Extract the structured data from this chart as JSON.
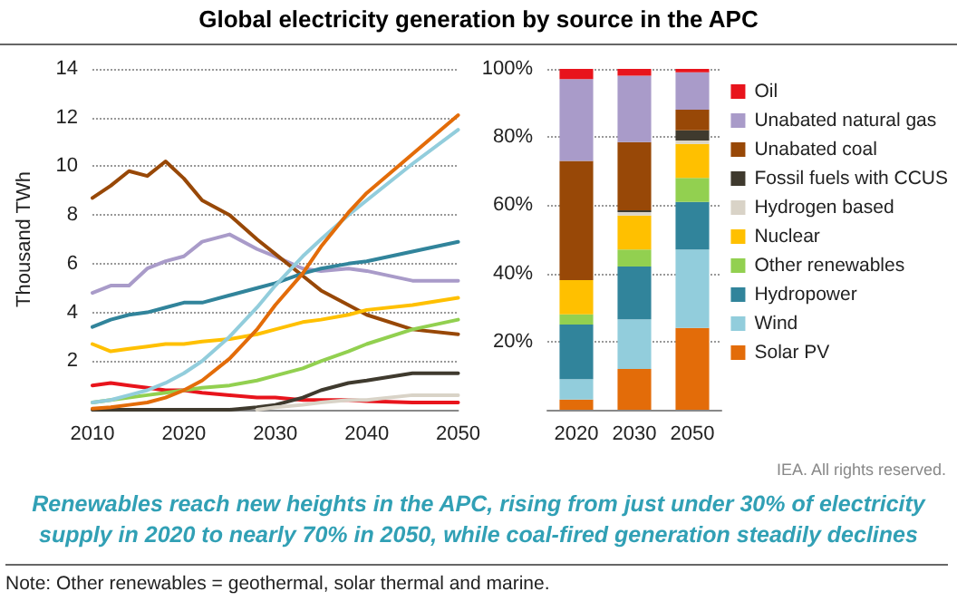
{
  "chart_data": [
    {
      "type": "line",
      "title": "Global electricity generation by source in the APC",
      "ylabel": "Thousand TWh",
      "x": [
        2010,
        2012,
        2014,
        2016,
        2018,
        2020,
        2022,
        2025,
        2028,
        2030,
        2033,
        2035,
        2038,
        2040,
        2045,
        2050
      ],
      "xlim": [
        2010,
        2050
      ],
      "xticks": [
        2010,
        2020,
        2030,
        2040,
        2050
      ],
      "ylim": [
        0,
        14
      ],
      "yticks": [
        2,
        4,
        6,
        8,
        10,
        12,
        14
      ],
      "grid": "y",
      "legend": false,
      "marker": "none",
      "line_style": "solid",
      "series": [
        {
          "color": "#e8141c",
          "values": [
            1.0,
            1.1,
            1.0,
            0.9,
            0.8,
            0.8,
            0.7,
            0.6,
            0.5,
            0.5,
            0.4,
            0.4,
            0.4,
            0.35,
            0.3,
            0.3
          ]
        },
        {
          "color": "#a99bc9",
          "values": [
            4.8,
            5.1,
            5.1,
            5.8,
            6.1,
            6.3,
            6.9,
            7.2,
            6.6,
            6.3,
            5.8,
            5.7,
            5.8,
            5.7,
            5.3,
            5.3
          ]
        },
        {
          "color": "#984807",
          "values": [
            8.7,
            9.2,
            9.8,
            9.6,
            10.2,
            9.5,
            8.6,
            8.0,
            7.0,
            6.4,
            5.5,
            4.9,
            4.3,
            3.9,
            3.3,
            3.1
          ]
        },
        {
          "color": "#3f3a2e",
          "values": [
            0,
            0,
            0,
            0,
            0,
            0,
            0,
            0,
            0.1,
            0.2,
            0.5,
            0.8,
            1.1,
            1.2,
            1.5,
            1.5
          ]
        },
        {
          "color": "#d9d3c7",
          "values": [
            null,
            null,
            null,
            null,
            null,
            null,
            null,
            null,
            0,
            0.1,
            0.2,
            0.3,
            0.4,
            0.4,
            0.6,
            0.6
          ]
        },
        {
          "color": "#ffc000",
          "values": [
            2.7,
            2.4,
            2.5,
            2.6,
            2.7,
            2.7,
            2.8,
            2.9,
            3.1,
            3.3,
            3.6,
            3.7,
            3.9,
            4.1,
            4.3,
            4.6
          ]
        },
        {
          "color": "#92d050",
          "values": [
            0.3,
            0.4,
            0.5,
            0.6,
            0.7,
            0.8,
            0.9,
            1.0,
            1.2,
            1.4,
            1.7,
            2.0,
            2.4,
            2.7,
            3.3,
            3.7
          ]
        },
        {
          "color": "#31849b",
          "values": [
            3.4,
            3.7,
            3.9,
            4.0,
            4.2,
            4.4,
            4.4,
            4.7,
            5.0,
            5.2,
            5.6,
            5.8,
            6.0,
            6.1,
            6.5,
            6.9
          ]
        },
        {
          "color": "#92cddc",
          "values": [
            0.3,
            0.4,
            0.6,
            0.8,
            1.1,
            1.5,
            2.0,
            3.0,
            4.2,
            5.1,
            6.3,
            7.0,
            8.0,
            8.6,
            10.1,
            11.5
          ]
        },
        {
          "color": "#e36c09",
          "values": [
            0.05,
            0.1,
            0.2,
            0.3,
            0.5,
            0.8,
            1.2,
            2.1,
            3.3,
            4.3,
            5.6,
            6.7,
            8.1,
            8.9,
            10.5,
            12.1
          ]
        }
      ],
      "annotations": [
        "IEA. All rights reserved.",
        "Renewables reach new heights in the APC, rising from just under 30% of electricity supply in 2020 to nearly 70% in 2050, while coal-fired generation steadily declines",
        "Note: Other renewables = geothermal, solar thermal and marine."
      ]
    },
    {
      "type": "bar",
      "stacked": true,
      "categories": [
        "2020",
        "2030",
        "2050"
      ],
      "ylim": [
        0,
        100
      ],
      "yticks": [
        {
          "value": 20,
          "label": "20%"
        },
        {
          "value": 40,
          "label": "40%"
        },
        {
          "value": 60,
          "label": "60%"
        },
        {
          "value": 80,
          "label": "80%"
        },
        {
          "value": 100,
          "label": "100%"
        }
      ],
      "grid": "y",
      "legend": "right",
      "series": [
        {
          "name": "Solar PV",
          "color": "#e36c09",
          "values": [
            3,
            12,
            24
          ]
        },
        {
          "name": "Wind",
          "color": "#92cddc",
          "values": [
            6,
            14.5,
            23
          ]
        },
        {
          "name": "Hydropower",
          "color": "#31849b",
          "values": [
            16,
            15.5,
            14
          ]
        },
        {
          "name": "Other renewables",
          "color": "#92d050",
          "values": [
            3,
            5,
            7
          ]
        },
        {
          "name": "Nuclear",
          "color": "#ffc000",
          "values": [
            10,
            10,
            10
          ]
        },
        {
          "name": "Hydrogen based",
          "color": "#d9d3c7",
          "values": [
            0,
            1,
            1
          ]
        },
        {
          "name": "Fossil fuels with CCUS",
          "color": "#3f3a2e",
          "values": [
            0,
            0.5,
            3
          ]
        },
        {
          "name": "Unabated coal",
          "color": "#984807",
          "values": [
            35,
            20,
            6
          ]
        },
        {
          "name": "Unabated natural gas",
          "color": "#a99bc9",
          "values": [
            24,
            19.5,
            11
          ]
        },
        {
          "name": "Oil",
          "color": "#e8141c",
          "values": [
            3,
            2,
            1
          ]
        }
      ]
    }
  ]
}
